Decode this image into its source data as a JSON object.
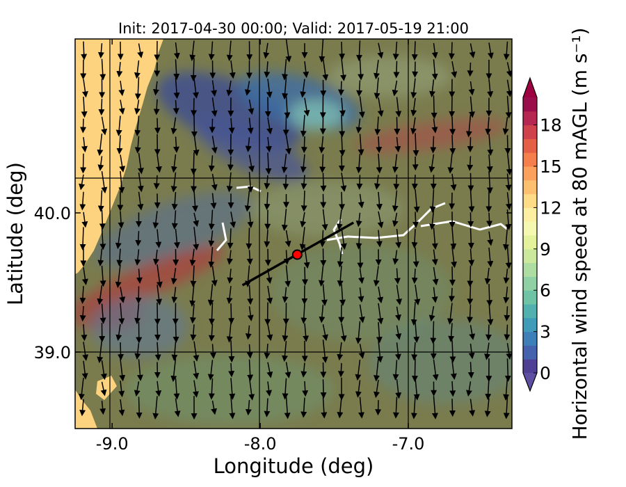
{
  "chart_data": {
    "type": "heatmap",
    "title": "Init: 2017-04-30 00:00; Valid: 2017-05-19 21:00",
    "xlabel": "Longitude (deg)",
    "ylabel": "Latitude (deg)",
    "x_ticks": [
      {
        "value": -9.0,
        "label": "-9.0"
      },
      {
        "value": -8.0,
        "label": "-8.0"
      },
      {
        "value": -7.0,
        "label": "-7.0"
      }
    ],
    "y_ticks": [
      {
        "value": 40.0,
        "label": "40.0"
      },
      {
        "value": 39.0,
        "label": "39.0"
      }
    ],
    "xlim": [
      -9.25,
      -6.3
    ],
    "ylim": [
      38.45,
      41.25
    ],
    "grid": true,
    "colorbar": {
      "label": "Horizontal wind speed at 80 mAGL (m s⁻¹)",
      "ticks": [
        {
          "value": 0,
          "label": "0"
        },
        {
          "value": 3,
          "label": "3"
        },
        {
          "value": 6,
          "label": "6"
        },
        {
          "value": 9,
          "label": "9"
        },
        {
          "value": 12,
          "label": "12"
        },
        {
          "value": 15,
          "label": "15"
        },
        {
          "value": 18,
          "label": "18"
        }
      ],
      "range": [
        0,
        20
      ],
      "step": 1,
      "extend": "both",
      "colormap": "Spectral_r",
      "colors": [
        "#4f3f95",
        "#4462ad",
        "#3f7fb9",
        "#3f9bb8",
        "#52b0ae",
        "#6ec4a4",
        "#8fd1a4",
        "#aedda1",
        "#cbe99d",
        "#e3f29b",
        "#f5f8b0",
        "#fdefa2",
        "#fedb86",
        "#fdc06e",
        "#fba15d",
        "#f47f4c",
        "#e45f45",
        "#cf424c",
        "#b52750",
        "#9a0f4b"
      ],
      "under_color": "#5e4fa2",
      "over_color": "#9e0142"
    },
    "cross_section_line": {
      "start": [
        -8.12,
        39.48
      ],
      "end": [
        -7.37,
        39.93
      ],
      "color": "#000000"
    },
    "marker": {
      "lon": -7.75,
      "lat": 39.7,
      "color": "#ff0000",
      "edge": "#000000"
    },
    "wind_field": {
      "dominant_direction": "southward (northerly flow)",
      "color": "#000000"
    },
    "land_tint": "#7a7a44",
    "ocean_color": "#fdd37f"
  }
}
